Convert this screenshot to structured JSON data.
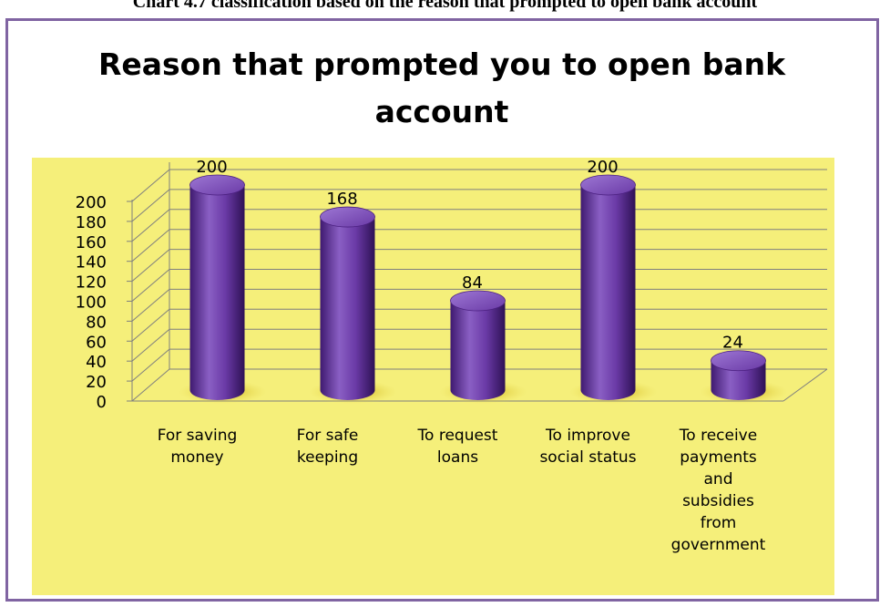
{
  "page_caption": "Chart 4.7 classification based on the reason that prompted to open bank account",
  "chart_data": {
    "type": "bar",
    "title": "Reason that prompted you to open bank account",
    "categories": [
      "For saving money",
      "For safe keeping",
      "To request loans",
      "To improve social status",
      "To receive payments and subsidies from government"
    ],
    "values": [
      200,
      168,
      84,
      200,
      24
    ],
    "ylim": [
      0,
      200
    ],
    "ytick_step": 20,
    "grid": true,
    "legend": "none",
    "bar_color": "#7030a0",
    "plot_background": "#f5ef7a",
    "frame_color": "#8064a2"
  }
}
